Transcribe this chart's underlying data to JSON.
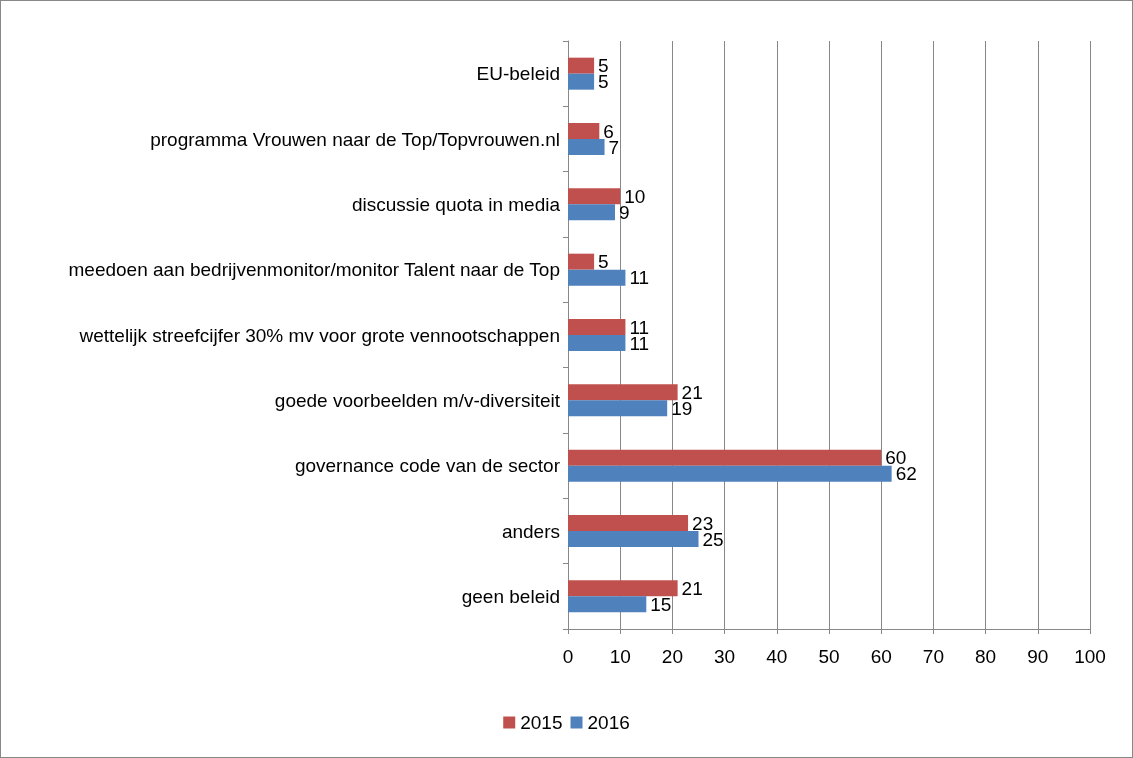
{
  "chart_data": {
    "type": "bar",
    "orientation": "horizontal",
    "categories": [
      "EU-beleid",
      "programma Vrouwen naar de Top/Topvrouwen.nl",
      "discussie quota in media",
      "meedoen aan bedrijvenmonitor/monitor Talent naar de Top",
      "wettelijk streefcijfer 30% mv voor grote vennootschappen",
      "goede voorbeelden m/v-diversiteit",
      "governance code van de sector",
      "anders",
      "geen beleid"
    ],
    "series": [
      {
        "name": "2015",
        "color": "#c0504d",
        "values": [
          5,
          6,
          10,
          5,
          11,
          21,
          60,
          23,
          21
        ]
      },
      {
        "name": "2016",
        "color": "#4f81bd",
        "values": [
          5,
          7,
          9,
          11,
          11,
          19,
          62,
          25,
          15
        ]
      }
    ],
    "xlim": [
      0,
      100
    ],
    "xticks": [
      0,
      10,
      20,
      30,
      40,
      50,
      60,
      70,
      80,
      90,
      100
    ],
    "grid": "x",
    "legend": "bottom",
    "data_labels": true
  }
}
